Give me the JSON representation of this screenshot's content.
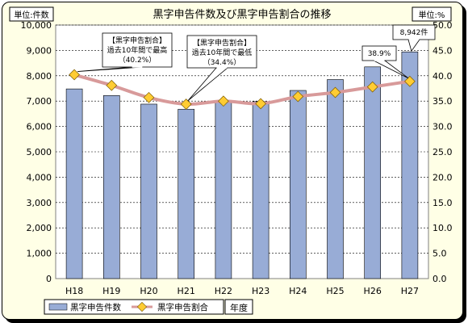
{
  "chart_data": {
    "type": "bar",
    "title": "黒字申告件数及び黒字申告割合の推移",
    "left_unit": "単位:件数",
    "right_unit": "単位:%",
    "xlabel": "年度",
    "categories": [
      "H18",
      "H19",
      "H20",
      "H21",
      "H22",
      "H23",
      "H24",
      "H25",
      "H26",
      "H27"
    ],
    "y_left": {
      "min": 0,
      "max": 10000,
      "step": 1000,
      "ticks": [
        "0",
        "1,000",
        "2,000",
        "3,000",
        "4,000",
        "5,000",
        "6,000",
        "7,000",
        "8,000",
        "9,000",
        "10,000"
      ]
    },
    "y_right": {
      "min": 0,
      "max": 50,
      "step": 5,
      "ticks": [
        "0.0",
        "5.0",
        "10.0",
        "15.0",
        "20.0",
        "25.0",
        "30.0",
        "35.0",
        "40.0",
        "45.0",
        "50.0"
      ]
    },
    "grid": true,
    "legend_placement": "bottom-left",
    "series": [
      {
        "name": "黒字申告件数",
        "type": "bar",
        "axis": "left",
        "color": "#98acd6",
        "values": [
          7480,
          7220,
          6880,
          6680,
          7020,
          6980,
          7420,
          7850,
          8350,
          8942
        ]
      },
      {
        "name": "黒字申告割合",
        "type": "line",
        "axis": "right",
        "color": "#d89a9a",
        "marker_color": "#ffcc33",
        "values": [
          40.2,
          38.1,
          35.7,
          34.4,
          35.0,
          34.5,
          35.9,
          36.7,
          37.8,
          38.9
        ]
      }
    ],
    "annotations": [
      {
        "lines": [
          "【黒字申告割合】",
          "過去10年間で最高",
          "（40.2%）"
        ]
      },
      {
        "lines": [
          "【黒字申告割合】",
          "過去10年間で最低",
          "（34.4%）"
        ]
      },
      {
        "lines": [
          "38.9%"
        ]
      },
      {
        "lines": [
          "8,942件"
        ]
      }
    ]
  }
}
